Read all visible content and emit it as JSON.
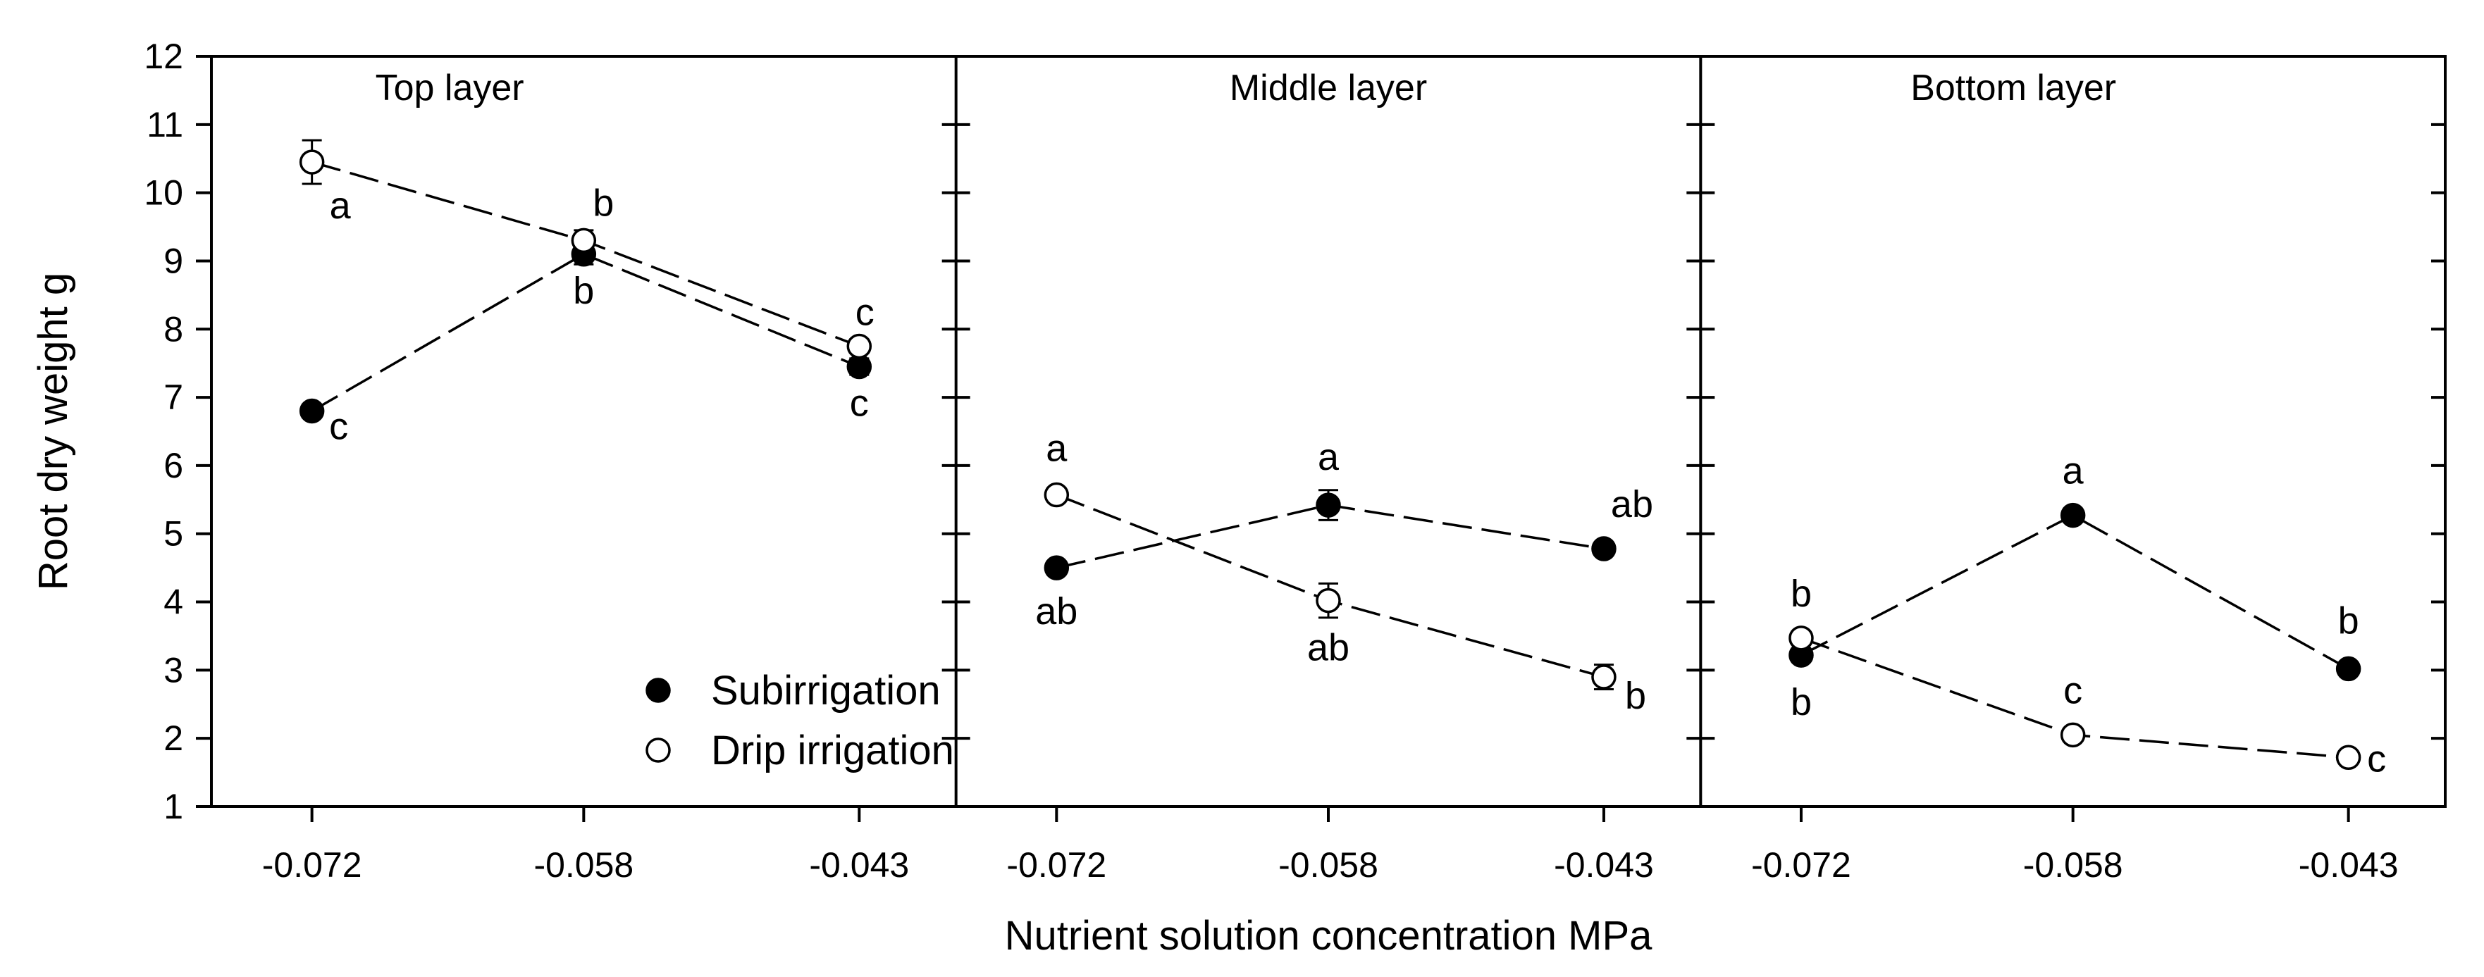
{
  "chart_data": {
    "type": "line",
    "ylabel": "Root dry weight g",
    "xlabel": "Nutrient solution concentration MPa",
    "ylim": [
      1,
      12
    ],
    "yticks": [
      1,
      2,
      3,
      4,
      5,
      6,
      7,
      8,
      9,
      10,
      11,
      12
    ],
    "categories": [
      "-0.072",
      "-0.058",
      "-0.043"
    ],
    "legend": {
      "placement": "bottom-right of first panel",
      "entries": [
        {
          "name": "Subirrigation",
          "marker": "filled-circle"
        },
        {
          "name": "Drip irrigation",
          "marker": "open-circle"
        }
      ]
    },
    "panels": [
      {
        "title": "Top layer",
        "series": [
          {
            "name": "Subirrigation",
            "values": [
              6.8,
              9.1,
              7.45
            ],
            "errors": [
              0.1,
              0.15,
              0.12
            ],
            "labels": [
              "c",
              "b",
              "c"
            ]
          },
          {
            "name": "Drip irrigation",
            "values": [
              10.45,
              9.3,
              7.75
            ],
            "errors": [
              0.32,
              0.15,
              0.1
            ],
            "labels": [
              "a",
              "b",
              "c"
            ]
          }
        ]
      },
      {
        "title": "Middle layer",
        "series": [
          {
            "name": "Subirrigation",
            "values": [
              4.5,
              5.42,
              4.78
            ],
            "errors": [
              0.1,
              0.22,
              0.1
            ],
            "labels": [
              "ab",
              "a",
              "ab"
            ]
          },
          {
            "name": "Drip irrigation",
            "values": [
              5.57,
              4.02,
              2.9
            ],
            "errors": [
              0.1,
              0.25,
              0.18
            ],
            "labels": [
              "a",
              "ab",
              "b"
            ]
          }
        ]
      },
      {
        "title": "Bottom layer",
        "series": [
          {
            "name": "Subirrigation",
            "values": [
              3.22,
              5.27,
              3.02
            ],
            "errors": [
              0.1,
              0.1,
              0.08
            ],
            "labels": [
              "b",
              "a",
              "b"
            ]
          },
          {
            "name": "Drip irrigation",
            "values": [
              3.47,
              2.05,
              1.72
            ],
            "errors": [
              0.1,
              0.08,
              0.08
            ],
            "labels": [
              "b",
              "c",
              "c"
            ]
          }
        ]
      }
    ]
  }
}
